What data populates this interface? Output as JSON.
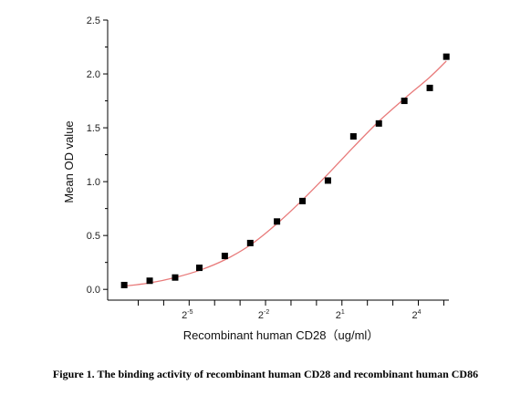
{
  "chart_data": {
    "type": "scatter",
    "xlabel": "Recombinant human  CD28（ug/ml）",
    "ylabel": "Mean OD value",
    "x_scale": "log2",
    "xlim": [
      -8.2,
      5.2
    ],
    "ylim": [
      -0.1,
      2.5
    ],
    "yticks": [
      0.0,
      0.5,
      1.0,
      1.5,
      2.0,
      2.5
    ],
    "y_tick_labels": [
      "0.0",
      "0.5",
      "1.0",
      "1.5",
      "2.0",
      "2.5"
    ],
    "xticks_labeled": [
      {
        "base": "2",
        "exp": "-5",
        "log2": -5
      },
      {
        "base": "2",
        "exp": "-2",
        "log2": -2
      },
      {
        "base": "2",
        "exp": "1",
        "log2": 1
      },
      {
        "base": "2",
        "exp": "4",
        "log2": 4
      }
    ],
    "xticks_minor_log2": [
      -7,
      -6,
      -4,
      -3,
      -1,
      0,
      2,
      3,
      5
    ],
    "series": [
      {
        "kind": "points",
        "color": "#000000",
        "marker": "square",
        "x_log2": [
          -7.55,
          -6.55,
          -5.55,
          -4.6,
          -3.6,
          -2.6,
          -1.55,
          -0.55,
          0.45,
          1.45,
          2.45,
          3.45,
          4.45,
          5.1
        ],
        "y": [
          0.04,
          0.08,
          0.11,
          0.2,
          0.31,
          0.43,
          0.63,
          0.82,
          1.01,
          1.42,
          1.54,
          1.75,
          1.87,
          2.16
        ]
      },
      {
        "kind": "fit-curve",
        "color": "#e87a7a",
        "x_log2": [
          -7.55,
          -6.55,
          -5.55,
          -4.55,
          -3.55,
          -2.55,
          -1.55,
          -0.55,
          0.45,
          1.45,
          2.45,
          3.45,
          4.45,
          5.1
        ],
        "y": [
          0.03,
          0.06,
          0.11,
          0.18,
          0.28,
          0.42,
          0.61,
          0.83,
          1.07,
          1.32,
          1.56,
          1.77,
          1.97,
          2.12
        ]
      }
    ],
    "grid": false,
    "legend": "none"
  },
  "caption": "Figure 1. The binding activity of recombinant human CD28 and recombinant human CD86"
}
